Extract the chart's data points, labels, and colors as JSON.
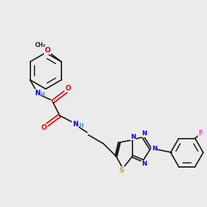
{
  "background_color": "#ebebeb",
  "bond_color": "#1a1a1a",
  "bond_width": 1.3,
  "atom_colors": {
    "N": "#0000ee",
    "O": "#ee0000",
    "S": "#ccaa00",
    "F": "#ff44cc",
    "C": "#1a1a1a",
    "H": "#4a9a9a"
  },
  "font_size": 7.0,
  "font_weight": "bold",
  "figsize": [
    3.0,
    3.0
  ],
  "dpi": 100
}
